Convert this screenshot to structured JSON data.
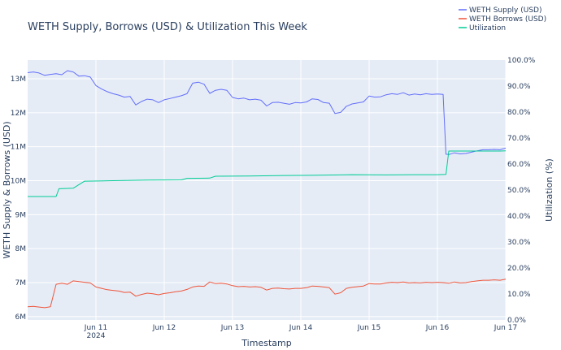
{
  "chart_data": {
    "type": "line",
    "title": "WETH Supply, Borrows (USD) & Utilization This Week",
    "xlabel": "Timestamp",
    "ylabel": "WETH Supply & Borrows (USD)",
    "y2label": "Utilization (%)",
    "ylim": [
      5900000,
      13550000
    ],
    "y2lim": [
      0,
      100
    ],
    "y_ticks": [
      6000000,
      7000000,
      8000000,
      9000000,
      10000000,
      11000000,
      12000000,
      13000000
    ],
    "y_tick_labels": [
      "6M",
      "7M",
      "8M",
      "9M",
      "10M",
      "11M",
      "12M",
      "13M"
    ],
    "y2_ticks": [
      0,
      10,
      20,
      30,
      40,
      50,
      60,
      70,
      80,
      90,
      100
    ],
    "y2_tick_labels": [
      "0.0%",
      "10.0%",
      "20.0%",
      "30.0%",
      "40.0%",
      "50.0%",
      "60.0%",
      "70.0%",
      "80.0%",
      "90.0%",
      "100.0%"
    ],
    "xlim": [
      "2024-06-10 00:00",
      "2024-06-17 00:00"
    ],
    "x_ticks": [
      "2024-06-11",
      "2024-06-12",
      "2024-06-13",
      "2024-06-14",
      "2024-06-15",
      "2024-06-16",
      "2024-06-17"
    ],
    "x_tick_labels": [
      "Jun 11",
      "Jun 12",
      "Jun 13",
      "Jun 14",
      "Jun 15",
      "Jun 16",
      "Jun 17"
    ],
    "x_year_label": "2024",
    "grid": true,
    "legend_position": "top-right",
    "series": [
      {
        "name": "WETH Supply (USD)",
        "color": "#636efa",
        "axis": "y",
        "x": [
          "2024-06-10 00:00",
          "2024-06-10 02:00",
          "2024-06-10 04:00",
          "2024-06-10 06:00",
          "2024-06-10 08:00",
          "2024-06-10 10:00",
          "2024-06-10 12:00",
          "2024-06-10 14:00",
          "2024-06-10 16:00",
          "2024-06-10 18:00",
          "2024-06-10 20:00",
          "2024-06-10 22:00",
          "2024-06-11 00:00",
          "2024-06-11 02:00",
          "2024-06-11 04:00",
          "2024-06-11 06:00",
          "2024-06-11 08:00",
          "2024-06-11 10:00",
          "2024-06-11 12:00",
          "2024-06-11 14:00",
          "2024-06-11 16:00",
          "2024-06-11 18:00",
          "2024-06-11 20:00",
          "2024-06-11 22:00",
          "2024-06-12 00:00",
          "2024-06-12 02:00",
          "2024-06-12 04:00",
          "2024-06-12 06:00",
          "2024-06-12 08:00",
          "2024-06-12 10:00",
          "2024-06-12 12:00",
          "2024-06-12 14:00",
          "2024-06-12 16:00",
          "2024-06-12 18:00",
          "2024-06-12 20:00",
          "2024-06-12 22:00",
          "2024-06-13 00:00",
          "2024-06-13 02:00",
          "2024-06-13 04:00",
          "2024-06-13 06:00",
          "2024-06-13 08:00",
          "2024-06-13 10:00",
          "2024-06-13 12:00",
          "2024-06-13 14:00",
          "2024-06-13 16:00",
          "2024-06-13 18:00",
          "2024-06-13 20:00",
          "2024-06-13 22:00",
          "2024-06-14 00:00",
          "2024-06-14 02:00",
          "2024-06-14 04:00",
          "2024-06-14 06:00",
          "2024-06-14 08:00",
          "2024-06-14 10:00",
          "2024-06-14 12:00",
          "2024-06-14 14:00",
          "2024-06-14 16:00",
          "2024-06-14 18:00",
          "2024-06-14 20:00",
          "2024-06-14 22:00",
          "2024-06-15 00:00",
          "2024-06-15 02:00",
          "2024-06-15 04:00",
          "2024-06-15 06:00",
          "2024-06-15 08:00",
          "2024-06-15 10:00",
          "2024-06-15 12:00",
          "2024-06-15 14:00",
          "2024-06-15 16:00",
          "2024-06-15 18:00",
          "2024-06-15 20:00",
          "2024-06-15 22:00",
          "2024-06-16 00:00",
          "2024-06-16 02:00",
          "2024-06-16 03:00",
          "2024-06-16 04:00",
          "2024-06-16 06:00",
          "2024-06-16 08:00",
          "2024-06-16 10:00",
          "2024-06-16 12:00",
          "2024-06-16 14:00",
          "2024-06-16 16:00",
          "2024-06-16 18:00",
          "2024-06-16 20:00",
          "2024-06-16 22:00",
          "2024-06-17 00:00"
        ],
        "y": [
          13180000,
          13200000,
          13170000,
          13100000,
          13130000,
          13150000,
          13120000,
          13240000,
          13200000,
          13080000,
          13090000,
          13050000,
          12800000,
          12700000,
          12620000,
          12560000,
          12520000,
          12460000,
          12480000,
          12230000,
          12330000,
          12400000,
          12380000,
          12300000,
          12380000,
          12420000,
          12460000,
          12500000,
          12560000,
          12870000,
          12900000,
          12840000,
          12570000,
          12660000,
          12690000,
          12660000,
          12450000,
          12410000,
          12430000,
          12380000,
          12400000,
          12370000,
          12200000,
          12300000,
          12310000,
          12280000,
          12250000,
          12300000,
          12290000,
          12320000,
          12410000,
          12390000,
          12300000,
          12280000,
          11980000,
          12010000,
          12190000,
          12260000,
          12290000,
          12320000,
          12490000,
          12460000,
          12470000,
          12530000,
          12560000,
          12540000,
          12590000,
          12520000,
          12550000,
          12530000,
          12560000,
          12540000,
          12550000,
          12540000,
          10780000,
          10770000,
          10820000,
          10790000,
          10800000,
          10840000,
          10880000,
          10910000,
          10910000,
          10920000,
          10910000,
          10960000
        ]
      },
      {
        "name": "WETH Borrows (USD)",
        "color": "#ef553b",
        "axis": "y",
        "x": [
          "2024-06-10 00:00",
          "2024-06-10 02:00",
          "2024-06-10 04:00",
          "2024-06-10 06:00",
          "2024-06-10 08:00",
          "2024-06-10 10:00",
          "2024-06-10 12:00",
          "2024-06-10 14:00",
          "2024-06-10 16:00",
          "2024-06-10 18:00",
          "2024-06-10 20:00",
          "2024-06-10 22:00",
          "2024-06-11 00:00",
          "2024-06-11 02:00",
          "2024-06-11 04:00",
          "2024-06-11 06:00",
          "2024-06-11 08:00",
          "2024-06-11 10:00",
          "2024-06-11 12:00",
          "2024-06-11 14:00",
          "2024-06-11 16:00",
          "2024-06-11 18:00",
          "2024-06-11 20:00",
          "2024-06-11 22:00",
          "2024-06-12 00:00",
          "2024-06-12 02:00",
          "2024-06-12 04:00",
          "2024-06-12 06:00",
          "2024-06-12 08:00",
          "2024-06-12 10:00",
          "2024-06-12 12:00",
          "2024-06-12 14:00",
          "2024-06-12 16:00",
          "2024-06-12 18:00",
          "2024-06-12 20:00",
          "2024-06-12 22:00",
          "2024-06-13 00:00",
          "2024-06-13 02:00",
          "2024-06-13 04:00",
          "2024-06-13 06:00",
          "2024-06-13 08:00",
          "2024-06-13 10:00",
          "2024-06-13 12:00",
          "2024-06-13 14:00",
          "2024-06-13 16:00",
          "2024-06-13 18:00",
          "2024-06-13 20:00",
          "2024-06-13 22:00",
          "2024-06-14 00:00",
          "2024-06-14 02:00",
          "2024-06-14 04:00",
          "2024-06-14 06:00",
          "2024-06-14 08:00",
          "2024-06-14 10:00",
          "2024-06-14 12:00",
          "2024-06-14 14:00",
          "2024-06-14 16:00",
          "2024-06-14 18:00",
          "2024-06-14 20:00",
          "2024-06-14 22:00",
          "2024-06-15 00:00",
          "2024-06-15 02:00",
          "2024-06-15 04:00",
          "2024-06-15 06:00",
          "2024-06-15 08:00",
          "2024-06-15 10:00",
          "2024-06-15 12:00",
          "2024-06-15 14:00",
          "2024-06-15 16:00",
          "2024-06-15 18:00",
          "2024-06-15 20:00",
          "2024-06-15 22:00",
          "2024-06-16 00:00",
          "2024-06-16 02:00",
          "2024-06-16 03:00",
          "2024-06-16 04:00",
          "2024-06-16 06:00",
          "2024-06-16 08:00",
          "2024-06-16 10:00",
          "2024-06-16 12:00",
          "2024-06-16 14:00",
          "2024-06-16 16:00",
          "2024-06-16 18:00",
          "2024-06-16 20:00",
          "2024-06-16 22:00",
          "2024-06-17 00:00"
        ],
        "y": [
          6290000,
          6300000,
          6280000,
          6260000,
          6290000,
          6950000,
          6980000,
          6950000,
          7050000,
          7030000,
          7010000,
          6990000,
          6870000,
          6830000,
          6790000,
          6770000,
          6750000,
          6710000,
          6720000,
          6600000,
          6650000,
          6690000,
          6670000,
          6640000,
          6680000,
          6700000,
          6730000,
          6750000,
          6800000,
          6870000,
          6900000,
          6890000,
          7020000,
          6970000,
          6980000,
          6960000,
          6910000,
          6880000,
          6890000,
          6870000,
          6880000,
          6860000,
          6780000,
          6830000,
          6840000,
          6820000,
          6810000,
          6830000,
          6830000,
          6850000,
          6900000,
          6890000,
          6870000,
          6850000,
          6660000,
          6700000,
          6830000,
          6860000,
          6880000,
          6900000,
          6970000,
          6960000,
          6960000,
          6990000,
          7010000,
          7000000,
          7020000,
          6990000,
          7000000,
          6990000,
          7010000,
          7000000,
          7010000,
          7000000,
          6990000,
          6980000,
          7020000,
          6990000,
          7000000,
          7030000,
          7050000,
          7070000,
          7070000,
          7080000,
          7070000,
          7100000
        ]
      },
      {
        "name": "Utilization",
        "color": "#00cc96",
        "axis": "y2",
        "x": [
          "2024-06-10 00:00",
          "2024-06-10 10:00",
          "2024-06-10 11:00",
          "2024-06-10 16:00",
          "2024-06-10 20:00",
          "2024-06-11 06:00",
          "2024-06-11 18:00",
          "2024-06-12 06:00",
          "2024-06-12 08:00",
          "2024-06-12 16:00",
          "2024-06-12 18:00",
          "2024-06-13 06:00",
          "2024-06-13 18:00",
          "2024-06-14 06:00",
          "2024-06-14 18:00",
          "2024-06-15 06:00",
          "2024-06-15 18:00",
          "2024-06-16 00:00",
          "2024-06-16 03:00",
          "2024-06-16 04:00",
          "2024-06-16 10:00",
          "2024-06-16 16:00",
          "2024-06-16 22:00",
          "2024-06-17 00:00"
        ],
        "y": [
          47.5,
          47.5,
          50.5,
          50.7,
          53.4,
          53.6,
          53.8,
          53.9,
          54.5,
          54.6,
          55.3,
          55.4,
          55.6,
          55.7,
          55.9,
          55.8,
          55.9,
          55.9,
          56.0,
          65.0,
          65.0,
          65.0,
          65.0,
          65.1
        ]
      }
    ]
  }
}
